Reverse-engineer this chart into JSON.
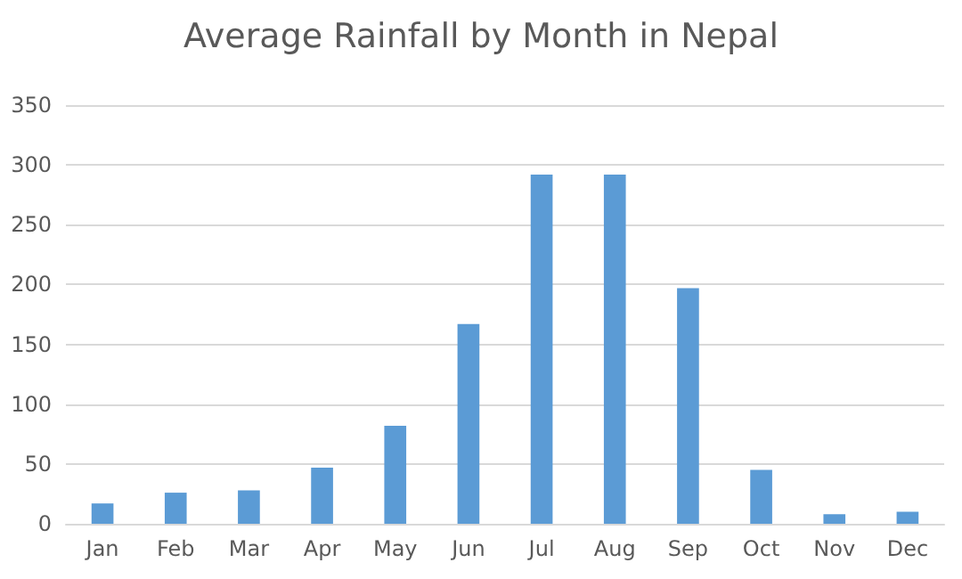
{
  "chart_data": {
    "type": "bar",
    "title": "Average Rainfall by Month in Nepal",
    "categories": [
      "Jan",
      "Feb",
      "Mar",
      "Apr",
      "May",
      "Jun",
      "Jul",
      "Aug",
      "Sep",
      "Oct",
      "Nov",
      "Dec"
    ],
    "values": [
      17,
      26,
      28,
      47,
      82,
      167,
      292,
      292,
      197,
      45,
      8,
      10
    ],
    "color": "#5b9bd5",
    "ylim": [
      0,
      350
    ],
    "yticks": [
      0,
      50,
      100,
      150,
      200,
      250,
      300,
      350
    ],
    "grid": "y"
  }
}
